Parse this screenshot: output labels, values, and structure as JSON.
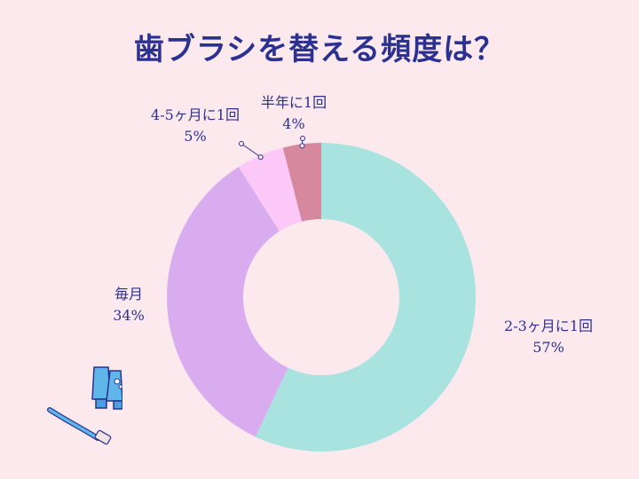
{
  "chart_data": {
    "type": "pie",
    "title": "歯ブラシを替える頻度は？",
    "donut": true,
    "slices": [
      {
        "label": "2-3ヶ月に1回",
        "value": 57,
        "value_label": "57%",
        "color": "#a8e3df"
      },
      {
        "label": "毎月",
        "value": 34,
        "value_label": "34%",
        "color": "#d9acf0"
      },
      {
        "label": "4-5ヶ月に1回",
        "value": 5,
        "value_label": "5%",
        "color": "#fcc8f8"
      },
      {
        "label": "半年に1回",
        "value": 4,
        "value_label": "4%",
        "color": "#d6889e"
      }
    ]
  },
  "decoration": {
    "icon": "toothbrush-and-toothpaste-icon"
  }
}
